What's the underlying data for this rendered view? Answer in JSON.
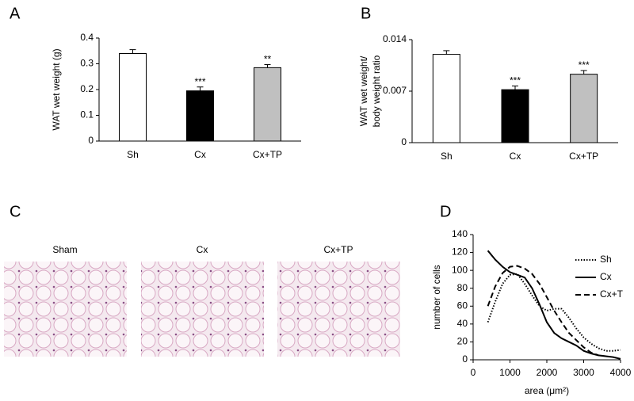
{
  "chart_data": [
    {
      "type": "bar",
      "panel_label": "A",
      "ylabel": "WAT wet weight (g)",
      "categories": [
        "Sh",
        "Cx",
        "Cx+TP"
      ],
      "values": [
        0.34,
        0.195,
        0.285
      ],
      "errors": [
        0.015,
        0.015,
        0.012
      ],
      "colors": [
        "#ffffff",
        "#000000",
        "#c0c0c0"
      ],
      "annotations": [
        null,
        "***",
        "**"
      ],
      "ylim": [
        0,
        0.4
      ],
      "yticks": [
        0,
        0.1,
        0.2,
        0.3,
        0.4
      ]
    },
    {
      "type": "bar",
      "panel_label": "B",
      "ylabel": [
        "WAT wet weight/",
        "body weight ratio"
      ],
      "categories": [
        "Sh",
        "Cx",
        "Cx+TP"
      ],
      "values": [
        0.012,
        0.0072,
        0.0093
      ],
      "errors": [
        0.0005,
        0.0005,
        0.0005
      ],
      "colors": [
        "#ffffff",
        "#000000",
        "#c0c0c0"
      ],
      "annotations": [
        null,
        "***",
        "***"
      ],
      "ylim": [
        0,
        0.014
      ],
      "yticks": [
        0,
        0.007,
        0.014
      ]
    },
    {
      "type": "line",
      "panel_label": "D",
      "xlabel": "area (μm²)",
      "ylabel": "number of cells",
      "x": [
        400,
        600,
        800,
        1000,
        1200,
        1400,
        1600,
        1800,
        2000,
        2200,
        2400,
        2600,
        2800,
        3000,
        3200,
        3400,
        3600,
        3800,
        4000
      ],
      "series": [
        {
          "name": "Sh",
          "color": "#000000",
          "dash": "dotted",
          "values": [
            42,
            65,
            85,
            95,
            96,
            85,
            72,
            60,
            55,
            57,
            57,
            47,
            35,
            25,
            18,
            13,
            10,
            10,
            11
          ]
        },
        {
          "name": "Cx",
          "color": "#000000",
          "dash": "solid",
          "values": [
            122,
            112,
            104,
            98,
            95,
            92,
            80,
            62,
            42,
            30,
            24,
            20,
            16,
            10,
            7,
            5,
            4,
            3,
            1
          ]
        },
        {
          "name": "Cx+T",
          "color": "#000000",
          "dash": "dashed",
          "values": [
            60,
            82,
            97,
            104,
            105,
            102,
            96,
            85,
            70,
            55,
            42,
            30,
            22,
            14,
            8,
            5,
            null,
            null,
            null
          ]
        }
      ],
      "xlim": [
        0,
        4000
      ],
      "xticks": [
        0,
        1000,
        2000,
        3000,
        4000
      ],
      "ylim": [
        0,
        140
      ],
      "yticks": [
        0,
        20,
        40,
        60,
        80,
        100,
        120,
        140
      ]
    }
  ],
  "images": {
    "panel_label": "C",
    "titles": [
      "Sham",
      "Cx",
      "Cx+TP"
    ]
  }
}
